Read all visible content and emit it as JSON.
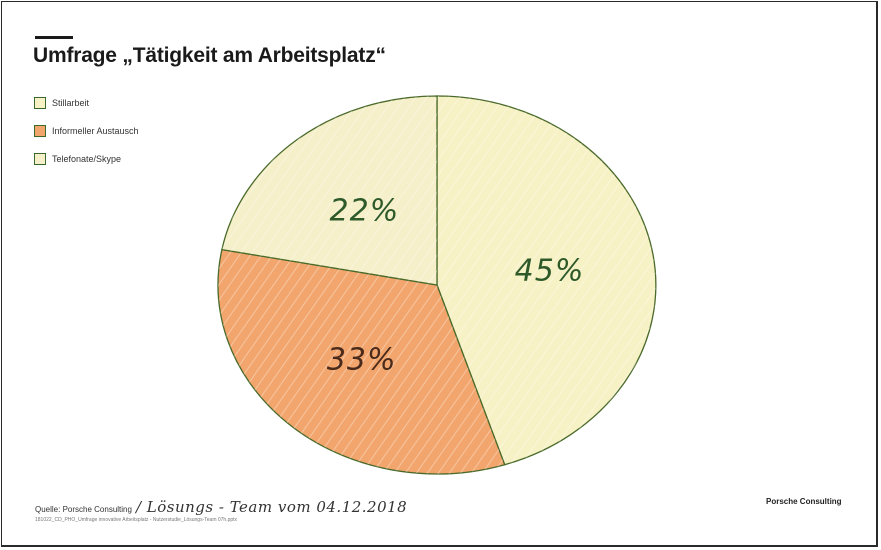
{
  "header": {
    "title": "Umfrage „Tätigkeit am Arbeitsplatz“"
  },
  "legend": [
    {
      "label": "Stillarbeit",
      "color": "#f7f1c6"
    },
    {
      "label": "Informeller Austausch",
      "color": "#f2a66e"
    },
    {
      "label": "Telefonate/Skype",
      "color": "#f5efca"
    }
  ],
  "chart_data": {
    "type": "pie",
    "title": "Umfrage „Tätigkeit am Arbeitsplatz“",
    "slices": [
      {
        "label": "Stillarbeit",
        "value": 45,
        "display": "45%",
        "color": "#f7f1c6",
        "label_color": "#2e5a2a"
      },
      {
        "label": "Informeller Austausch",
        "value": 33,
        "display": "33%",
        "color": "#f2a66e",
        "label_color": "#4a2a1a"
      },
      {
        "label": "Telefonate/Skype",
        "value": 22,
        "display": "22%",
        "color": "#f5efca",
        "label_color": "#2e5a2a"
      }
    ],
    "start": "12 o'clock",
    "direction": "clockwise",
    "legend_position": "top-left",
    "outline_color": "#4a6a2a"
  },
  "footer": {
    "source_prefix": "Quelle: Porsche Consulting",
    "source_handwritten": "/ Lösungs - Team vom 04.12.2018",
    "filepath": "181022_CD_PHO_Umfrage innovative Arbeitsplatz - Nutzerstudie_Lösungs-Team 07h.pptx",
    "brand": "Porsche Consulting"
  }
}
